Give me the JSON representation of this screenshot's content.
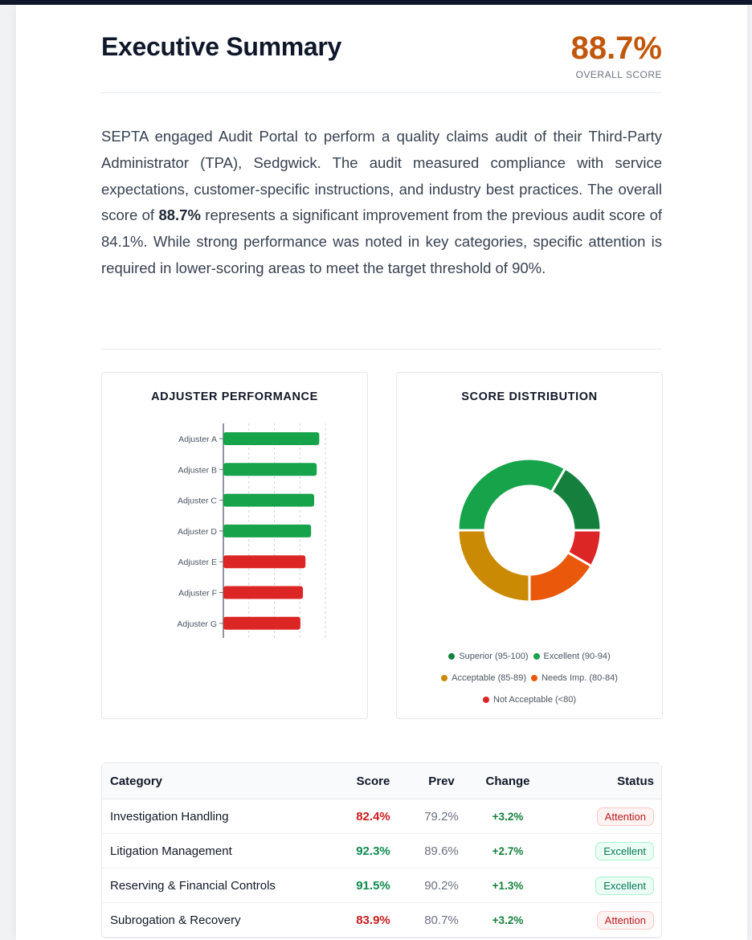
{
  "header": {
    "title": "Executive Summary",
    "overall_score": "88.7%",
    "overall_label": "OVERALL SCORE"
  },
  "summary": {
    "part1": "SEPTA engaged Audit Portal to perform a quality claims audit of their Third-Party Administrator (TPA), Sedgwick. The audit measured compliance with service expectations, customer-specific instructions, and industry best practices. The overall score of ",
    "highlight": "88.7%",
    "part2": " represents a significant improvement from the previous audit score of 84.1%. While strong performance was noted in key categories, specific attention is required in lower-scoring areas to meet the target threshold of 90%."
  },
  "chart_data": [
    {
      "type": "bar",
      "orientation": "horizontal",
      "title": "ADJUSTER PERFORMANCE",
      "categories": [
        "Adjuster A",
        "Adjuster B",
        "Adjuster C",
        "Adjuster D",
        "Adjuster E",
        "Adjuster F",
        "Adjuster G"
      ],
      "values": [
        94,
        91.5,
        89,
        86,
        80.5,
        78,
        75.5
      ],
      "colors": [
        "#16a34a",
        "#16a34a",
        "#16a34a",
        "#16a34a",
        "#dc2626",
        "#dc2626",
        "#dc2626"
      ],
      "xlim": [
        0,
        100
      ],
      "grid": true
    },
    {
      "type": "pie",
      "variant": "donut",
      "title": "SCORE DISTRIBUTION",
      "labels": [
        "Superior (95-100)",
        "Excellent (90-94)",
        "Acceptable (85-89)",
        "Needs Imp. (80-84)",
        "Not Acceptable (<80)"
      ],
      "values": [
        2,
        4,
        3,
        2,
        1
      ],
      "colors": [
        "#15803d",
        "#16a34a",
        "#ca8a04",
        "#ea580c",
        "#dc2626"
      ],
      "legend": "bottom"
    }
  ],
  "table": {
    "headers": [
      "Category",
      "Score",
      "Prev",
      "Change",
      "Status"
    ],
    "rows": [
      {
        "category": "Investigation Handling",
        "score": "82.4%",
        "prev": "79.2%",
        "change": "+3.2%",
        "status": "Attention",
        "color": "#c81e1e"
      },
      {
        "category": "Litigation Management",
        "score": "92.3%",
        "prev": "89.6%",
        "change": "+2.7%",
        "status": "Excellent",
        "color": "#0f8a4f"
      },
      {
        "category": "Reserving & Financial Controls",
        "score": "91.5%",
        "prev": "90.2%",
        "change": "+1.3%",
        "status": "Excellent",
        "color": "#0f8a4f"
      },
      {
        "category": "Subrogation & Recovery",
        "score": "83.9%",
        "prev": "80.7%",
        "change": "+3.2%",
        "status": "Attention",
        "color": "#c81e1e"
      }
    ]
  }
}
